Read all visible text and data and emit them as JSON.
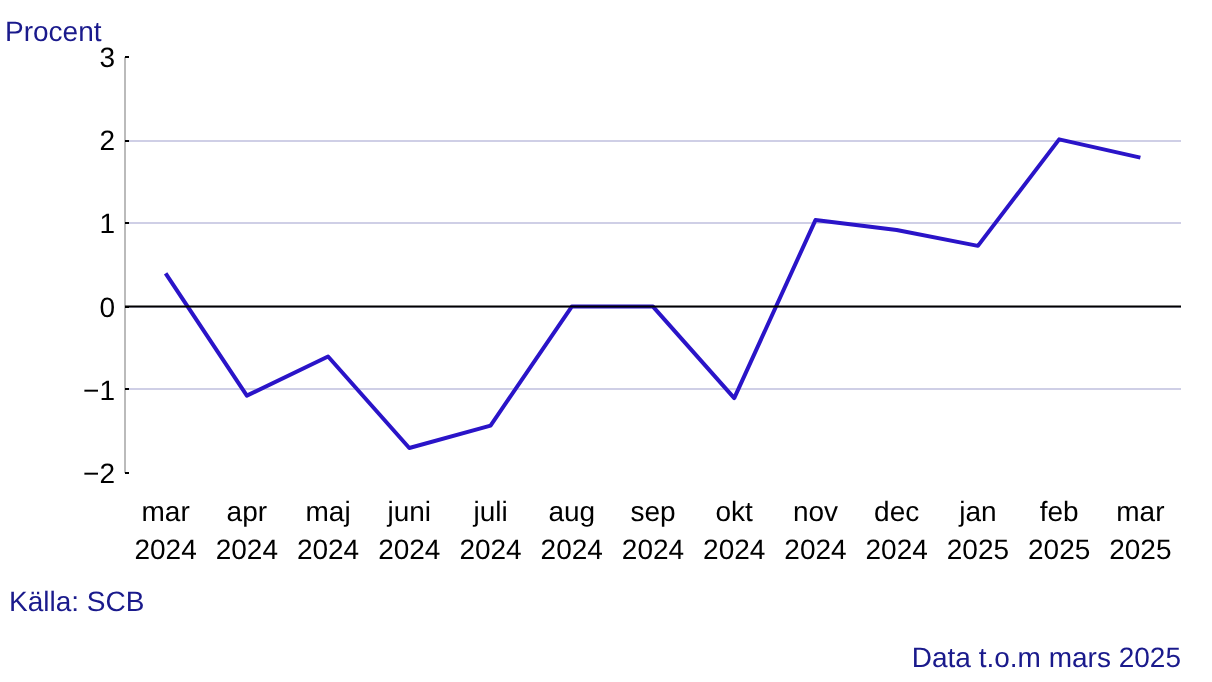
{
  "chart_data": {
    "type": "line",
    "ylabel": "Procent",
    "categories": [
      "mar 2024",
      "apr 2024",
      "maj 2024",
      "juni 2024",
      "juli 2024",
      "aug 2024",
      "sep 2024",
      "okt 2024",
      "nov 2024",
      "dec 2024",
      "jan 2025",
      "feb 2025",
      "mar 2025"
    ],
    "series": [
      {
        "color": "#2a14c8",
        "values": [
          0.4,
          -1.07,
          -0.6,
          -1.7,
          -1.43,
          0.0,
          0.0,
          -1.1,
          1.04,
          0.92,
          0.73,
          2.01,
          1.79
        ]
      }
    ],
    "ylim": [
      -2,
      3
    ],
    "yticks": [
      -2,
      -1,
      0,
      1,
      2,
      3
    ],
    "grid": "y",
    "marker": "none",
    "line_style": "solid",
    "annotations": [
      "Källa: SCB",
      "Data t.o.m mars 2025"
    ]
  }
}
